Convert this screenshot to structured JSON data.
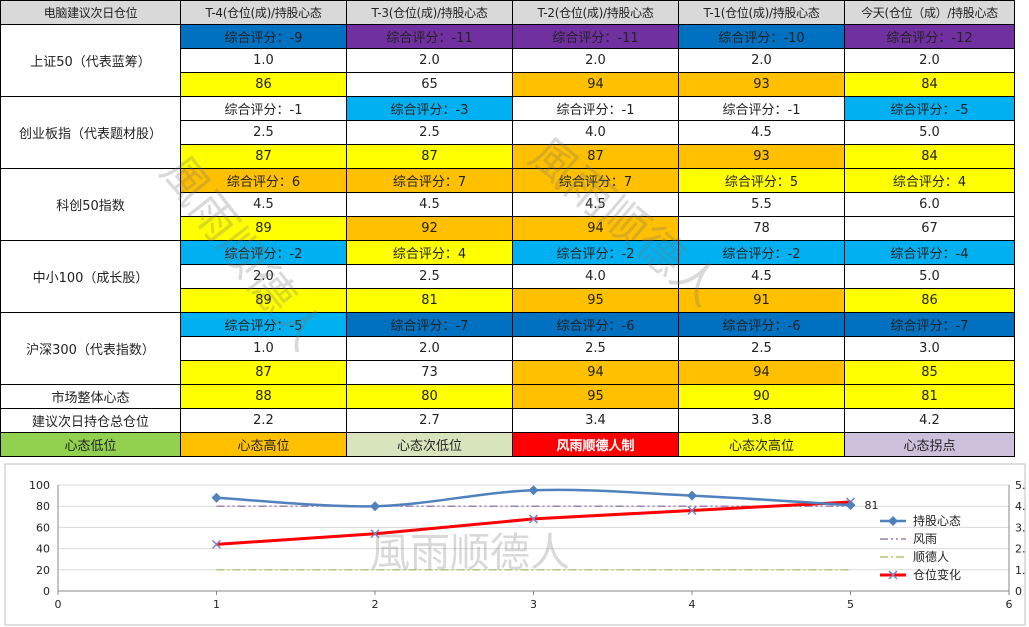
{
  "table": {
    "corner": "电脑建议次日仓位",
    "columns": [
      "T-4(仓位(成)/持股心态",
      "T-3(仓位(成)/持股心态",
      "T-2(仓位(成)/持股心态",
      "T-1(仓位(成)/持股心态",
      "今天(仓位（成）/持股心态"
    ],
    "indices": [
      {
        "name": "上证50（代表蓝筹）",
        "scores": [
          "综合评分：-9",
          "综合评分：-11",
          "综合评分：-11",
          "综合评分：-10",
          "综合评分：-12"
        ],
        "score_colors": [
          "darkblue",
          "purple",
          "purple",
          "darkblue",
          "purple"
        ],
        "positions": [
          "1.0",
          "2.0",
          "2.0",
          "2.0",
          "2.0"
        ],
        "moods": [
          "86",
          "65",
          "94",
          "93",
          "84"
        ],
        "mood_colors": [
          "yellow",
          "white",
          "orange",
          "orange",
          "yellow"
        ]
      },
      {
        "name": "创业板指（代表题材股）",
        "scores": [
          "综合评分：-1",
          "综合评分：-3",
          "综合评分：-1",
          "综合评分：-1",
          "综合评分：-5"
        ],
        "score_colors": [
          "white",
          "lightblue",
          "white",
          "white",
          "lightblue"
        ],
        "positions": [
          "2.5",
          "2.5",
          "4.0",
          "4.5",
          "5.0"
        ],
        "moods": [
          "87",
          "87",
          "87",
          "93",
          "84"
        ],
        "mood_colors": [
          "yellow",
          "yellow",
          "orange",
          "orange",
          "yellow"
        ]
      },
      {
        "name": "科创50指数",
        "scores": [
          "综合评分：6",
          "综合评分：7",
          "综合评分：7",
          "综合评分：5",
          "综合评分：4"
        ],
        "score_colors": [
          "orange",
          "orange",
          "orange",
          "yellow",
          "yellow"
        ],
        "positions": [
          "4.5",
          "4.5",
          "4.5",
          "5.5",
          "6.0"
        ],
        "moods": [
          "89",
          "92",
          "94",
          "78",
          "67"
        ],
        "mood_colors": [
          "yellow",
          "orange",
          "orange",
          "white",
          "white"
        ]
      },
      {
        "name": "中小100（成长股）",
        "scores": [
          "综合评分：-2",
          "综合评分：4",
          "综合评分：-2",
          "综合评分：-2",
          "综合评分：-4"
        ],
        "score_colors": [
          "lightblue",
          "yellow",
          "lightblue",
          "lightblue",
          "lightblue"
        ],
        "positions": [
          "2.0",
          "2.5",
          "4.0",
          "4.5",
          "5.0"
        ],
        "moods": [
          "89",
          "81",
          "95",
          "91",
          "86"
        ],
        "mood_colors": [
          "yellow",
          "yellow",
          "orange",
          "orange",
          "yellow"
        ]
      },
      {
        "name": "沪深300（代表指数）",
        "scores": [
          "综合评分：-5",
          "综合评分：-7",
          "综合评分：-6",
          "综合评分：-6",
          "综合评分：-7"
        ],
        "score_colors": [
          "lightblue",
          "darkblue",
          "darkblue",
          "darkblue",
          "darkblue"
        ],
        "positions": [
          "1.0",
          "2.0",
          "2.5",
          "2.5",
          "3.0"
        ],
        "moods": [
          "87",
          "73",
          "94",
          "94",
          "85"
        ],
        "mood_colors": [
          "yellow",
          "white",
          "orange",
          "orange",
          "yellow"
        ]
      }
    ],
    "overall": {
      "label": "市场整体心态",
      "values": [
        "88",
        "80",
        "95",
        "90",
        "81"
      ],
      "colors": [
        "yellow",
        "yellow",
        "orange",
        "yellow",
        "yellow"
      ]
    },
    "advice": {
      "label": "建议次日持仓总仓位",
      "values": [
        "2.2",
        "2.7",
        "3.4",
        "3.8",
        "4.2"
      ]
    },
    "legend": [
      {
        "text": "心态低位",
        "color": "green"
      },
      {
        "text": "心态高位",
        "color": "orange"
      },
      {
        "text": "心态次低位",
        "color": "lightgreen"
      },
      {
        "text": "风雨顺德人制",
        "color": "red"
      },
      {
        "text": "心态次高位",
        "color": "yellow"
      },
      {
        "text": "心态拐点",
        "color": "lavender"
      }
    ]
  },
  "palette": {
    "purple": "#7030a0",
    "darkblue": "#0070c0",
    "lightblue": "#00b0f0",
    "yellow": "#ffff00",
    "orange": "#ffc000",
    "white": "#ffffff",
    "green": "#92d050",
    "lightgreen": "#d8e4bc",
    "red": "#ff0000",
    "lavender": "#ccc0da"
  },
  "watermark": "風雨顺德人",
  "chart_data": {
    "type": "line",
    "x": [
      1,
      2,
      3,
      4,
      5
    ],
    "xlim": [
      0,
      6
    ],
    "xticks": [
      "0",
      "1",
      "2",
      "3",
      "4",
      "5",
      "6"
    ],
    "ylim_left": [
      0,
      100
    ],
    "yticks_left": [
      "0",
      "20",
      "40",
      "60",
      "80",
      "100"
    ],
    "ylim_right": [
      0,
      5
    ],
    "yticks_right": [
      "0",
      "1.",
      "2.",
      "3.",
      "4.",
      "5."
    ],
    "grid": true,
    "legend_position": "right",
    "series": [
      {
        "name": "持股心态",
        "axis": "left",
        "values": [
          88,
          80,
          95,
          90,
          81
        ],
        "color": "#4f81bd",
        "marker": "diamond",
        "smooth": true,
        "point_label": "81"
      },
      {
        "name": "风雨",
        "axis": "left",
        "values": [
          80,
          80,
          80,
          80,
          80
        ],
        "color": "#8064a2",
        "dash": "dashdotdot"
      },
      {
        "name": "顺德人",
        "axis": "left",
        "values": [
          20,
          20,
          20,
          20,
          20
        ],
        "color": "#9bbb59",
        "dash": "dashdot"
      },
      {
        "name": "仓位变化",
        "axis": "right",
        "values": [
          2.2,
          2.7,
          3.4,
          3.8,
          4.2
        ],
        "color": "#ff0000",
        "marker": "x"
      }
    ]
  }
}
